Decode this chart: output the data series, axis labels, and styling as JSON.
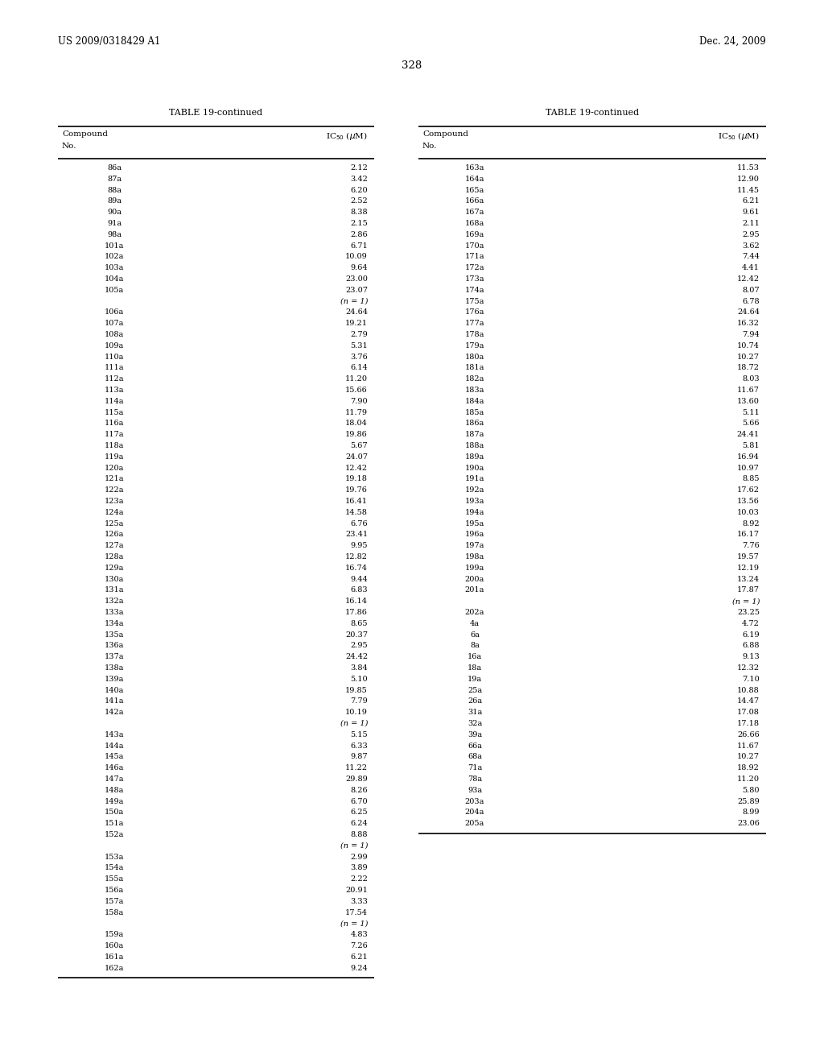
{
  "header_left": "US 2009/0318429 A1",
  "header_right": "Dec. 24, 2009",
  "page_number": "328",
  "table_title": "TABLE 19-continued",
  "col1_header_line1": "Compound",
  "col1_header_line2": "No.",
  "col2_header": "IC$_{50}$ ($\\mu$M)",
  "left_data": [
    [
      "86a",
      "2.12"
    ],
    [
      "87a",
      "3.42"
    ],
    [
      "88a",
      "6.20"
    ],
    [
      "89a",
      "2.52"
    ],
    [
      "90a",
      "8.38"
    ],
    [
      "91a",
      "2.15"
    ],
    [
      "98a",
      "2.86"
    ],
    [
      "101a",
      "6.71"
    ],
    [
      "102a",
      "10.09"
    ],
    [
      "103a",
      "9.64"
    ],
    [
      "104a",
      "23.00"
    ],
    [
      "105a",
      "23.07"
    ],
    [
      "",
      "(n = 1)"
    ],
    [
      "106a",
      "24.64"
    ],
    [
      "107a",
      "19.21"
    ],
    [
      "108a",
      "2.79"
    ],
    [
      "109a",
      "5.31"
    ],
    [
      "110a",
      "3.76"
    ],
    [
      "111a",
      "6.14"
    ],
    [
      "112a",
      "11.20"
    ],
    [
      "113a",
      "15.66"
    ],
    [
      "114a",
      "7.90"
    ],
    [
      "115a",
      "11.79"
    ],
    [
      "116a",
      "18.04"
    ],
    [
      "117a",
      "19.86"
    ],
    [
      "118a",
      "5.67"
    ],
    [
      "119a",
      "24.07"
    ],
    [
      "120a",
      "12.42"
    ],
    [
      "121a",
      "19.18"
    ],
    [
      "122a",
      "19.76"
    ],
    [
      "123a",
      "16.41"
    ],
    [
      "124a",
      "14.58"
    ],
    [
      "125a",
      "6.76"
    ],
    [
      "126a",
      "23.41"
    ],
    [
      "127a",
      "9.95"
    ],
    [
      "128a",
      "12.82"
    ],
    [
      "129a",
      "16.74"
    ],
    [
      "130a",
      "9.44"
    ],
    [
      "131a",
      "6.83"
    ],
    [
      "132a",
      "16.14"
    ],
    [
      "133a",
      "17.86"
    ],
    [
      "134a",
      "8.65"
    ],
    [
      "135a",
      "20.37"
    ],
    [
      "136a",
      "2.95"
    ],
    [
      "137a",
      "24.42"
    ],
    [
      "138a",
      "3.84"
    ],
    [
      "139a",
      "5.10"
    ],
    [
      "140a",
      "19.85"
    ],
    [
      "141a",
      "7.79"
    ],
    [
      "142a",
      "10.19"
    ],
    [
      "",
      "(n = 1)"
    ],
    [
      "143a",
      "5.15"
    ],
    [
      "144a",
      "6.33"
    ],
    [
      "145a",
      "9.87"
    ],
    [
      "146a",
      "11.22"
    ],
    [
      "147a",
      "29.89"
    ],
    [
      "148a",
      "8.26"
    ],
    [
      "149a",
      "6.70"
    ],
    [
      "150a",
      "6.25"
    ],
    [
      "151a",
      "6.24"
    ],
    [
      "152a",
      "8.88"
    ],
    [
      "",
      "(n = 1)"
    ],
    [
      "153a",
      "2.99"
    ],
    [
      "154a",
      "3.89"
    ],
    [
      "155a",
      "2.22"
    ],
    [
      "156a",
      "20.91"
    ],
    [
      "157a",
      "3.33"
    ],
    [
      "158a",
      "17.54"
    ],
    [
      "",
      "(n = 1)"
    ],
    [
      "159a",
      "4.83"
    ],
    [
      "160a",
      "7.26"
    ],
    [
      "161a",
      "6.21"
    ],
    [
      "162a",
      "9.24"
    ]
  ],
  "right_data": [
    [
      "163a",
      "11.53"
    ],
    [
      "164a",
      "12.90"
    ],
    [
      "165a",
      "11.45"
    ],
    [
      "166a",
      "6.21"
    ],
    [
      "167a",
      "9.61"
    ],
    [
      "168a",
      "2.11"
    ],
    [
      "169a",
      "2.95"
    ],
    [
      "170a",
      "3.62"
    ],
    [
      "171a",
      "7.44"
    ],
    [
      "172a",
      "4.41"
    ],
    [
      "173a",
      "12.42"
    ],
    [
      "174a",
      "8.07"
    ],
    [
      "175a",
      "6.78"
    ],
    [
      "176a",
      "24.64"
    ],
    [
      "177a",
      "16.32"
    ],
    [
      "178a",
      "7.94"
    ],
    [
      "179a",
      "10.74"
    ],
    [
      "180a",
      "10.27"
    ],
    [
      "181a",
      "18.72"
    ],
    [
      "182a",
      "8.03"
    ],
    [
      "183a",
      "11.67"
    ],
    [
      "184a",
      "13.60"
    ],
    [
      "185a",
      "5.11"
    ],
    [
      "186a",
      "5.66"
    ],
    [
      "187a",
      "24.41"
    ],
    [
      "188a",
      "5.81"
    ],
    [
      "189a",
      "16.94"
    ],
    [
      "190a",
      "10.97"
    ],
    [
      "191a",
      "8.85"
    ],
    [
      "192a",
      "17.62"
    ],
    [
      "193a",
      "13.56"
    ],
    [
      "194a",
      "10.03"
    ],
    [
      "195a",
      "8.92"
    ],
    [
      "196a",
      "16.17"
    ],
    [
      "197a",
      "7.76"
    ],
    [
      "198a",
      "19.57"
    ],
    [
      "199a",
      "12.19"
    ],
    [
      "200a",
      "13.24"
    ],
    [
      "201a",
      "17.87"
    ],
    [
      "",
      "(n = 1)"
    ],
    [
      "202a",
      "23.25"
    ],
    [
      "4a",
      "4.72"
    ],
    [
      "6a",
      "6.19"
    ],
    [
      "8a",
      "6.88"
    ],
    [
      "16a",
      "9.13"
    ],
    [
      "18a",
      "12.32"
    ],
    [
      "19a",
      "7.10"
    ],
    [
      "25a",
      "10.88"
    ],
    [
      "26a",
      "14.47"
    ],
    [
      "31a",
      "17.08"
    ],
    [
      "32a",
      "17.18"
    ],
    [
      "39a",
      "26.66"
    ],
    [
      "66a",
      "11.67"
    ],
    [
      "68a",
      "10.27"
    ],
    [
      "71a",
      "18.92"
    ],
    [
      "78a",
      "11.20"
    ],
    [
      "93a",
      "5.80"
    ],
    [
      "203a",
      "25.89"
    ],
    [
      "204a",
      "8.99"
    ],
    [
      "205a",
      "23.06"
    ]
  ],
  "fig_width": 10.24,
  "fig_height": 13.2,
  "dpi": 100
}
